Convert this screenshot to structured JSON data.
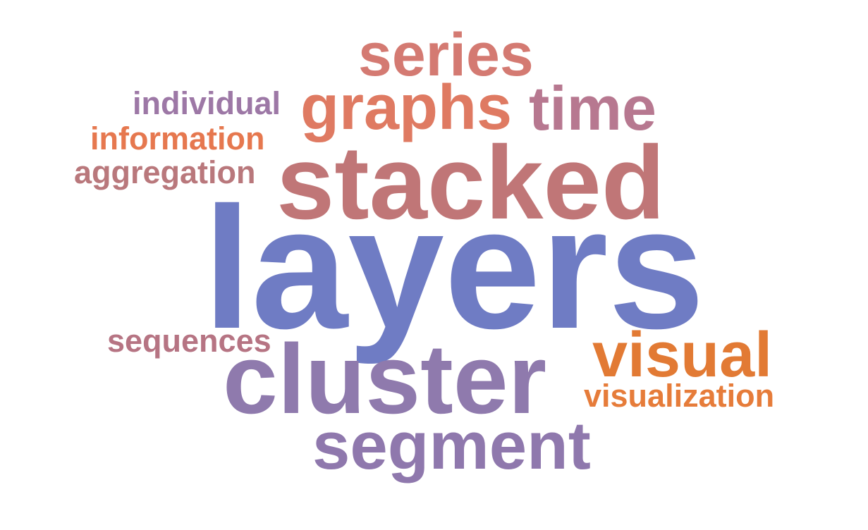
{
  "cloud": {
    "words": [
      {
        "text": "layers",
        "color": "#6f7cc4"
      },
      {
        "text": "stacked",
        "color": "#c07677"
      },
      {
        "text": "cluster",
        "color": "#8f7aad"
      },
      {
        "text": "series",
        "color": "#d47a72"
      },
      {
        "text": "graphs",
        "color": "#df7a62"
      },
      {
        "text": "time",
        "color": "#b77890"
      },
      {
        "text": "individual",
        "color": "#9d78a6"
      },
      {
        "text": "information",
        "color": "#e6784f"
      },
      {
        "text": "aggregation",
        "color": "#b9787c"
      },
      {
        "text": "sequences",
        "color": "#b67483"
      },
      {
        "text": "visual",
        "color": "#e27a34"
      },
      {
        "text": "visualization",
        "color": "#e67c3a"
      },
      {
        "text": "segment",
        "color": "#8f78ad"
      }
    ]
  }
}
